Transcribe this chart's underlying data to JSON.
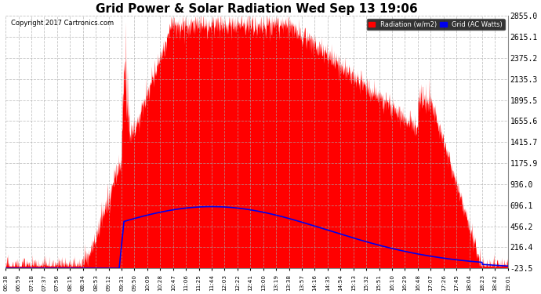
{
  "title": "Grid Power & Solar Radiation Wed Sep 13 19:06",
  "copyright": "Copyright 2017 Cartronics.com",
  "legend_radiation": "Radiation (w/m2)",
  "legend_grid": "Grid (AC Watts)",
  "yticks": [
    -23.5,
    216.4,
    456.2,
    696.1,
    936.0,
    1175.9,
    1415.7,
    1655.6,
    1895.5,
    2135.3,
    2375.2,
    2615.1,
    2855.0
  ],
  "ymin": -23.5,
  "ymax": 2855.0,
  "background_color": "#ffffff",
  "plot_bg_color": "#ffffff",
  "grid_color": "#aaaaaa",
  "radiation_color": "#ff0000",
  "grid_power_color": "#0000ee",
  "title_fontsize": 11,
  "xtick_labels": [
    "06:38",
    "06:59",
    "07:18",
    "07:37",
    "07:56",
    "08:15",
    "08:34",
    "08:53",
    "09:12",
    "09:31",
    "09:50",
    "10:09",
    "10:28",
    "10:47",
    "11:06",
    "11:25",
    "11:44",
    "12:03",
    "12:22",
    "12:41",
    "13:00",
    "13:19",
    "13:38",
    "13:57",
    "14:16",
    "14:35",
    "14:54",
    "15:13",
    "15:32",
    "15:51",
    "16:10",
    "16:29",
    "16:48",
    "17:07",
    "17:26",
    "17:45",
    "18:04",
    "18:23",
    "18:42",
    "19:01"
  ]
}
